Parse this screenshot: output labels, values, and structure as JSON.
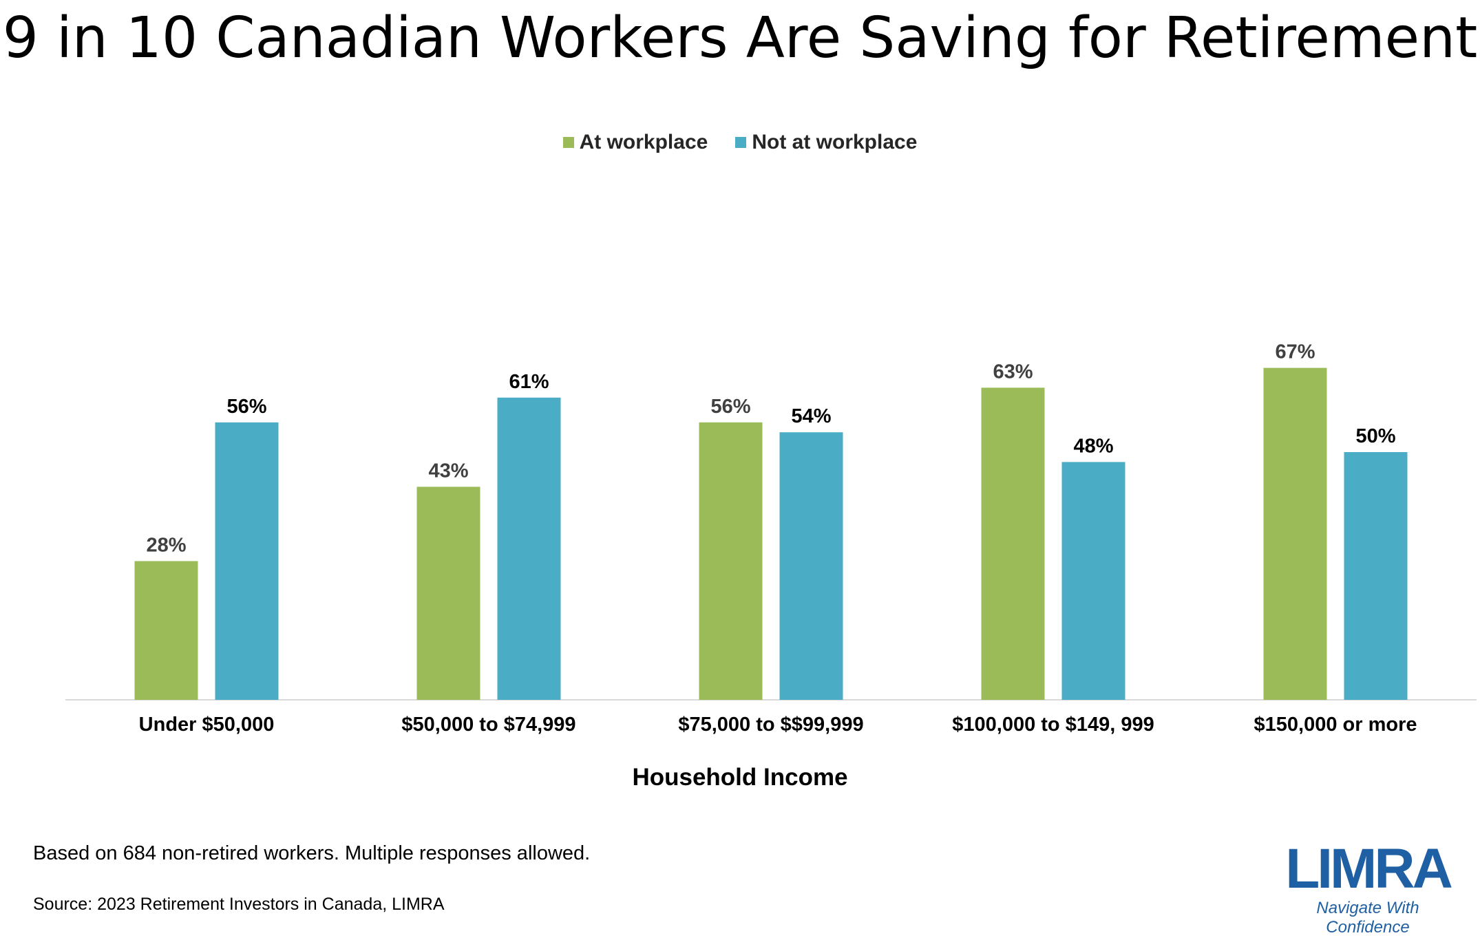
{
  "title": "9 in 10 Canadian Workers Are Saving for Retirement",
  "legend": [
    {
      "label": "At workplace",
      "color": "#9bbb59"
    },
    {
      "label": "Not at workplace",
      "color": "#4bacc6"
    }
  ],
  "chart_data": {
    "type": "bar",
    "categories": [
      "Under $50,000",
      "$50,000 to $74,999",
      "$75,000 to $$99,999",
      "$100,000 to $149, 999",
      "$150,000 or more"
    ],
    "series": [
      {
        "name": "At workplace",
        "values": [
          28,
          43,
          56,
          63,
          67
        ],
        "labels": [
          "28%",
          "43%",
          "56%",
          "63%",
          "67%"
        ],
        "color": "#9bbb59",
        "label_color": "#404040"
      },
      {
        "name": "Not at workplace",
        "values": [
          56,
          61,
          54,
          48,
          50
        ],
        "labels": [
          "56%",
          "61%",
          "54%",
          "48%",
          "50%"
        ],
        "color": "#4bacc6",
        "label_color": "#000000"
      }
    ],
    "xlabel": "Household Income",
    "ylabel": "",
    "ylim": [
      0,
      70
    ],
    "grid": false,
    "legend_position": "top-center"
  },
  "footnote": "Based on 684 non-retired workers. Multiple responses allowed.",
  "source": "Source: 2023 Retirement Investors in Canada, LIMRA",
  "logo": {
    "wordmark": "LIMRA",
    "tagline": "Navigate With Confidence",
    "color": "#1f5fa3"
  }
}
